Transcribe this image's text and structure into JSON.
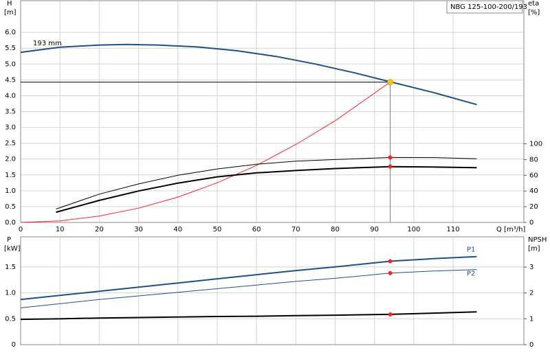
{
  "chart_data": [
    {
      "type": "line",
      "title": "NBG 125-100-200/193",
      "xlabel": "Q [m³/h]",
      "ylabel": "H",
      "yunit": "[m]",
      "y2label": "eta",
      "y2unit": "[%]",
      "xlim": [
        0,
        128
      ],
      "xticks": [
        0,
        10,
        20,
        30,
        40,
        50,
        60,
        70,
        80,
        90,
        100,
        110
      ],
      "ylim": [
        0,
        7
      ],
      "yticks": [
        {
          "value": 0,
          "label": "0.0"
        },
        0.5,
        {
          "value": 1,
          "label": "1.0"
        },
        1.5,
        {
          "value": 2,
          "label": "2.0"
        },
        2.5,
        {
          "value": 3,
          "label": "3.0"
        },
        3.5,
        {
          "value": 4,
          "label": "4.0"
        },
        4.5,
        {
          "value": 5,
          "label": "5.0"
        },
        5.5,
        {
          "value": 6,
          "label": "6.0"
        }
      ],
      "y2lim": [
        0,
        282
      ],
      "y2ticks": [
        0,
        20,
        40,
        60,
        80,
        100
      ],
      "grid": true,
      "series": [
        {
          "name": "193 mm",
          "label_at": "start",
          "color": "#1f4e8c",
          "width": 2,
          "x": [
            0,
            10,
            20,
            27,
            35,
            45,
            55,
            65,
            75,
            85,
            94,
            105,
            116
          ],
          "values": [
            5.37,
            5.53,
            5.6,
            5.62,
            5.6,
            5.54,
            5.42,
            5.24,
            5.0,
            4.72,
            4.44,
            4.1,
            3.72
          ]
        },
        {
          "color": "#ff2020",
          "width": 1,
          "x": [
            0,
            10,
            20,
            30,
            40,
            50,
            60,
            70,
            80,
            94
          ],
          "values": [
            0,
            0.05,
            0.2,
            0.45,
            0.8,
            1.25,
            1.8,
            2.46,
            3.21,
            4.43
          ]
        },
        {
          "color": "#000000",
          "width": 1,
          "axis": "y2",
          "x": [
            9,
            20,
            30,
            40,
            50,
            60,
            70,
            80,
            94,
            105,
            116
          ],
          "values": [
            17,
            36,
            49,
            60,
            68,
            74,
            78,
            80,
            82.6,
            82.5,
            81
          ]
        },
        {
          "color": "#000000",
          "width": 2,
          "axis": "y2",
          "x": [
            9,
            20,
            30,
            40,
            50,
            60,
            70,
            80,
            94,
            105,
            116
          ],
          "values": [
            13,
            28,
            40,
            50,
            58,
            63,
            66,
            68.5,
            71,
            70.5,
            69.6
          ]
        }
      ],
      "markers": [
        {
          "x": 94,
          "y": 4.43,
          "color": "#f5c518",
          "guide": true
        },
        {
          "x": 94,
          "y": 82.6,
          "color": "#ff2020",
          "axis": "y2"
        },
        {
          "x": 94,
          "y": 71,
          "color": "#ff2020",
          "axis": "y2"
        }
      ]
    },
    {
      "type": "line",
      "ylabel": "P",
      "yunit": "[kW]",
      "y2label": "NPSH",
      "y2unit": "[m]",
      "xlim": [
        0,
        128
      ],
      "xticks": [
        0,
        10,
        20,
        30,
        40,
        50,
        60,
        70,
        80,
        90,
        100,
        110
      ],
      "ylim": [
        0,
        2.08
      ],
      "yticks": [
        0,
        0.5,
        {
          "value": 1,
          "label": "1.0"
        },
        1.5
      ],
      "y2lim": [
        0,
        4.17
      ],
      "y2ticks": [
        0,
        1,
        2,
        3
      ],
      "grid": true,
      "series": [
        {
          "name": "P1",
          "label_at": "end-above",
          "color": "#1f4e8c",
          "width": 2,
          "x": [
            0,
            10,
            20,
            30,
            40,
            50,
            60,
            70,
            80,
            94,
            105,
            116
          ],
          "values": [
            0.87,
            0.95,
            1.03,
            1.11,
            1.19,
            1.27,
            1.35,
            1.43,
            1.5,
            1.61,
            1.66,
            1.7
          ]
        },
        {
          "name": "P2",
          "label_at": "end-below",
          "color": "#1f4e8c",
          "width": 1,
          "x": [
            0,
            10,
            20,
            30,
            40,
            50,
            60,
            70,
            80,
            94,
            105,
            116
          ],
          "values": [
            0.71,
            0.79,
            0.87,
            0.94,
            1.01,
            1.08,
            1.15,
            1.22,
            1.28,
            1.38,
            1.42,
            1.45
          ]
        },
        {
          "color": "#000000",
          "width": 2,
          "axis": "y2",
          "x": [
            0,
            10,
            20,
            30,
            40,
            50,
            60,
            70,
            80,
            94,
            105,
            116
          ],
          "values": [
            0.98,
            1.0,
            1.03,
            1.05,
            1.07,
            1.09,
            1.1,
            1.12,
            1.14,
            1.17,
            1.22,
            1.27
          ]
        }
      ],
      "markers": [
        {
          "x": 94,
          "y": 1.61,
          "color": "#ff2020"
        },
        {
          "x": 94,
          "y": 1.38,
          "color": "#ff2020"
        },
        {
          "x": 94,
          "y": 1.17,
          "color": "#ff2020",
          "axis": "y2"
        }
      ]
    }
  ]
}
